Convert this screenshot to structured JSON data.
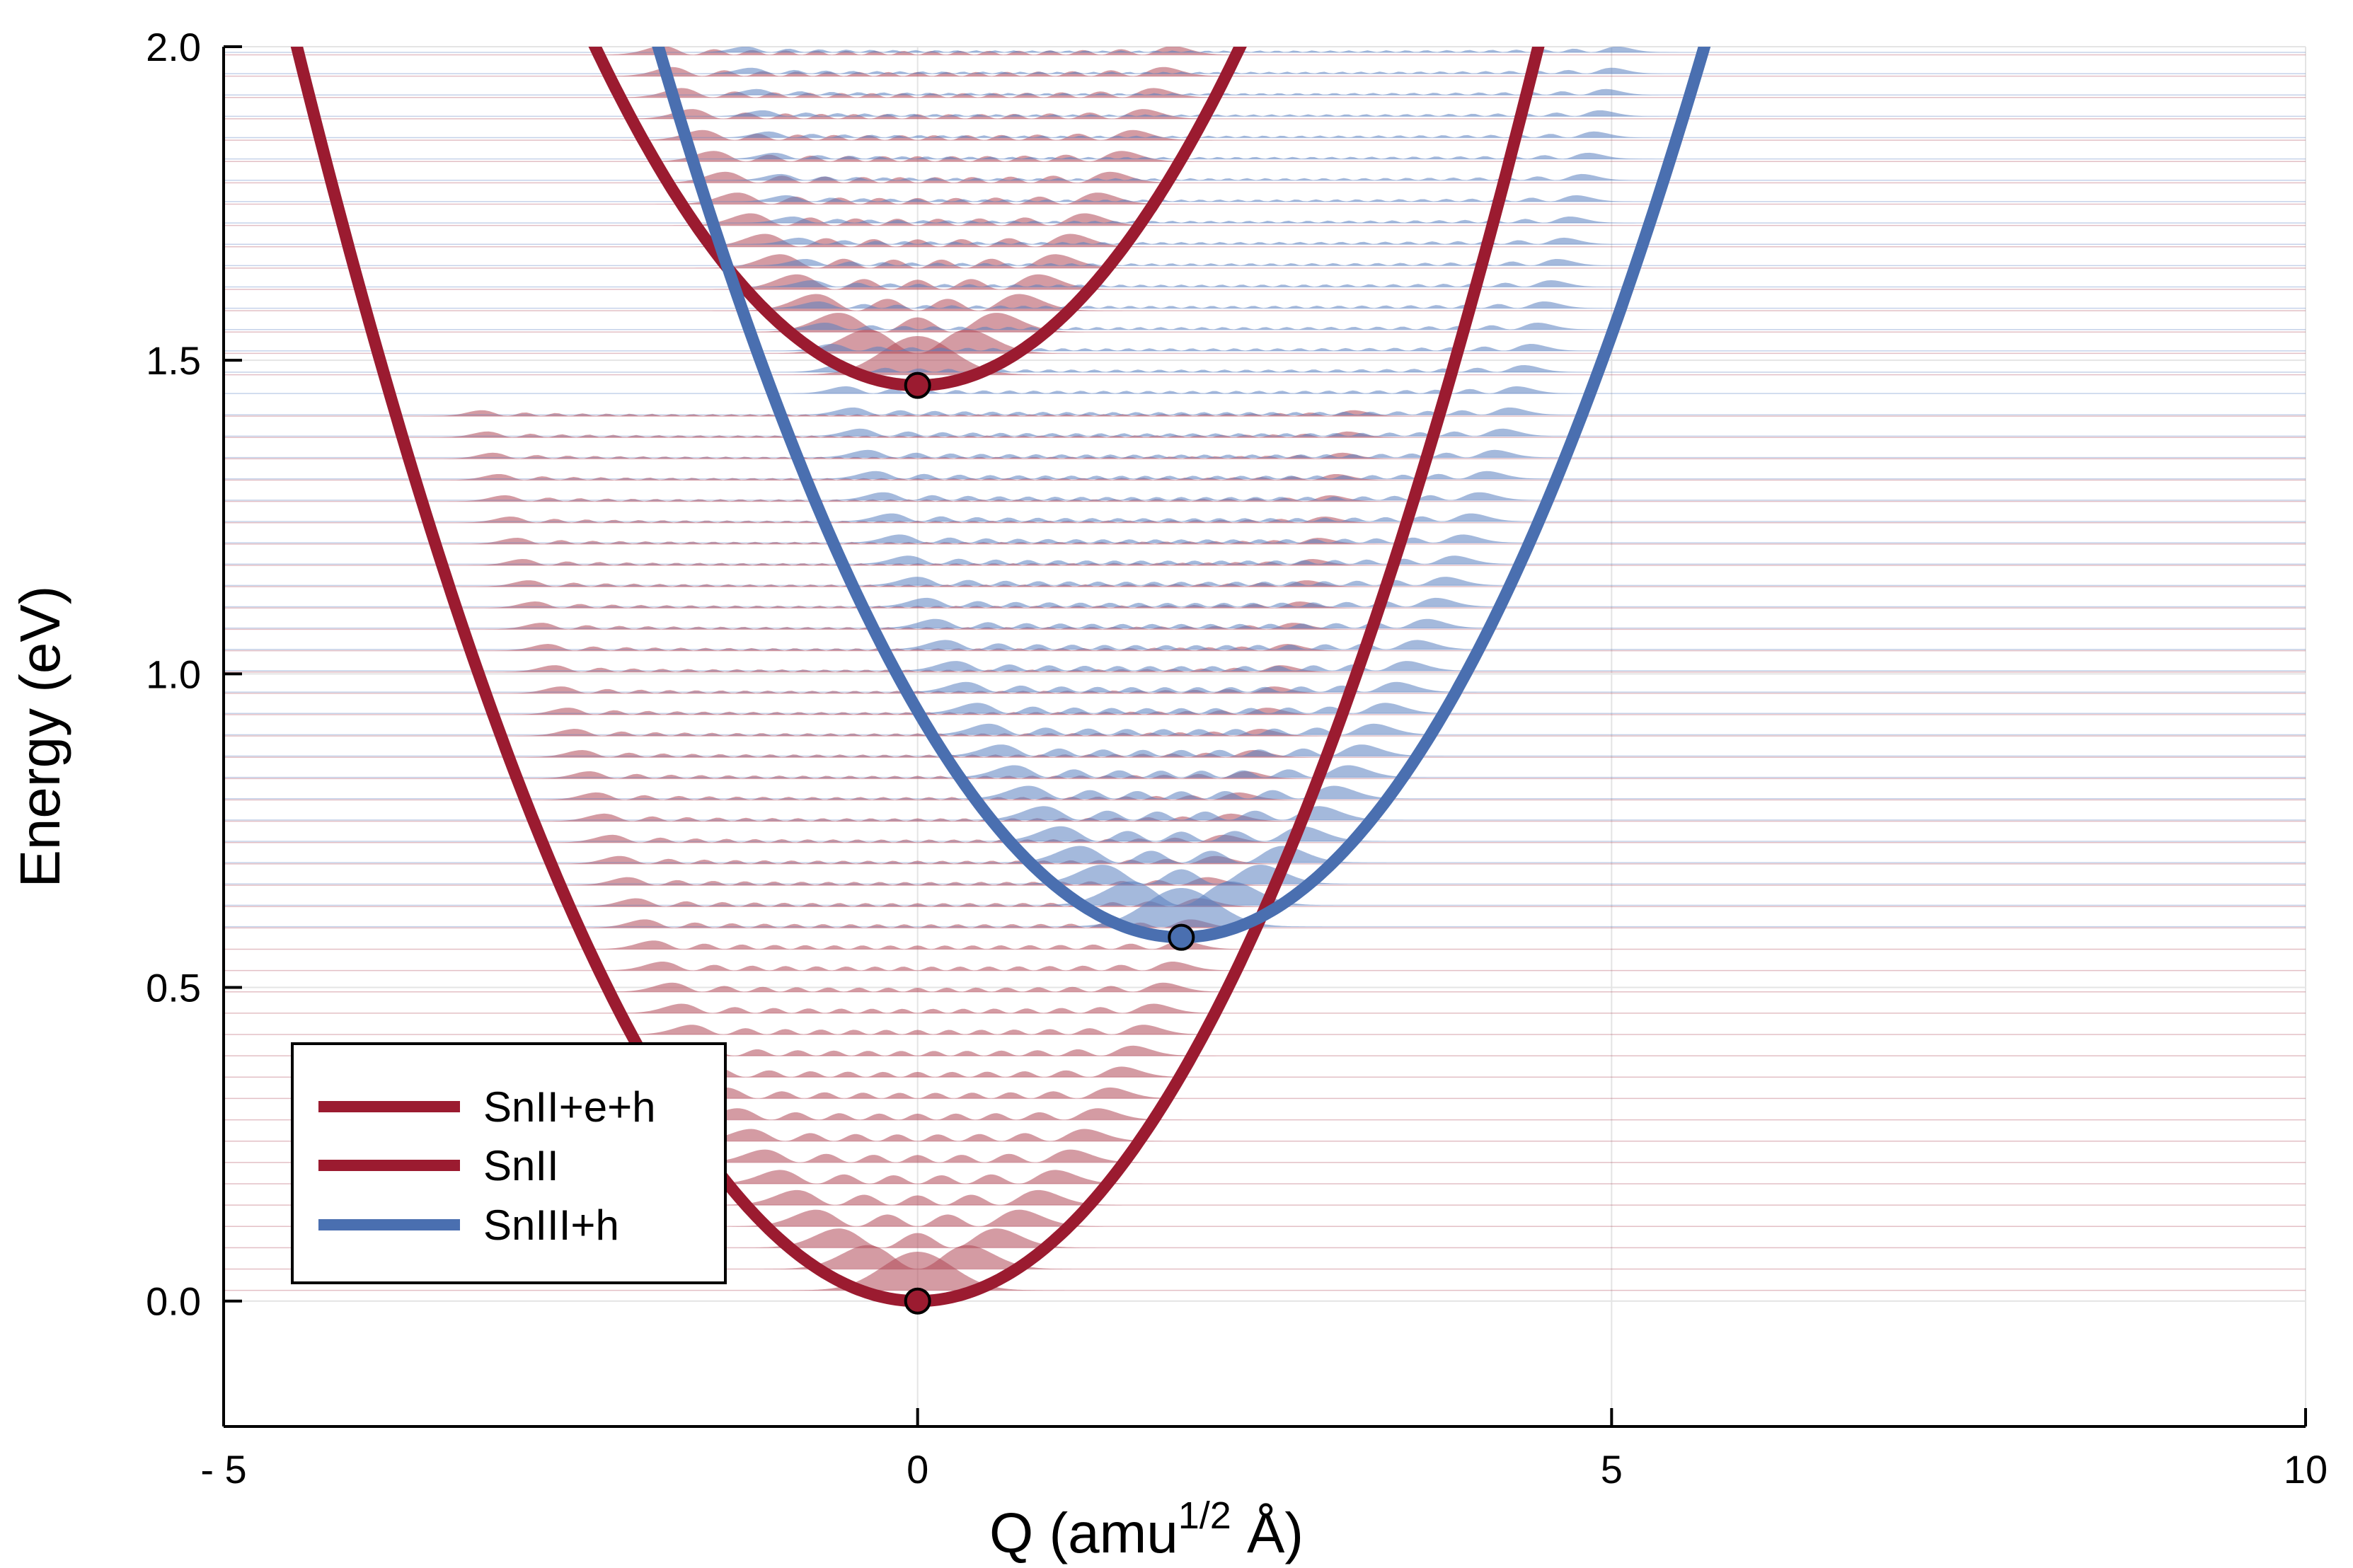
{
  "chart_data": {
    "type": "line",
    "xlabel": "Q (amu",
    "xlabel_superscript": "1/2",
    "xlabel_suffix": " Å)",
    "ylabel": "Energy  (eV)",
    "xlim": [
      -5,
      10
    ],
    "ylim": [
      -0.2,
      2.0
    ],
    "x_ticks": [
      -5,
      0,
      5,
      10
    ],
    "x_tick_labels": [
      "- 5",
      "0",
      "5",
      "10"
    ],
    "y_ticks": [
      0.0,
      0.5,
      1.0,
      1.5,
      2.0
    ],
    "y_tick_labels": [
      "0.0",
      "0.5",
      "1.0",
      "1.5",
      "2.0"
    ],
    "grid": true,
    "legend_position": "bottom-left",
    "series": [
      {
        "name": "SnII+e+h",
        "color": "#9b1b30",
        "minimum": {
          "Q": 0.0,
          "E": 1.46
        },
        "curvature": 0.1
      },
      {
        "name": "SnII",
        "color": "#9b1b30",
        "minimum": {
          "Q": 0.0,
          "E": 0.0
        },
        "curvature": 0.1
      },
      {
        "name": "SnIII+h",
        "color": "#4a6fb0",
        "minimum": {
          "Q": 1.9,
          "E": 0.58
        },
        "curvature": 0.1
      }
    ],
    "vibrational_levels": {
      "SnII": {
        "spacing": 0.034,
        "max_energy": 1.41,
        "color": "#b04858"
      },
      "SnII+e+h": {
        "spacing": 0.034,
        "max_energy": 2.0,
        "color": "#b04858"
      },
      "SnIII+h": {
        "spacing": 0.034,
        "max_energy": 2.0,
        "color": "#5a7fc0"
      }
    }
  }
}
